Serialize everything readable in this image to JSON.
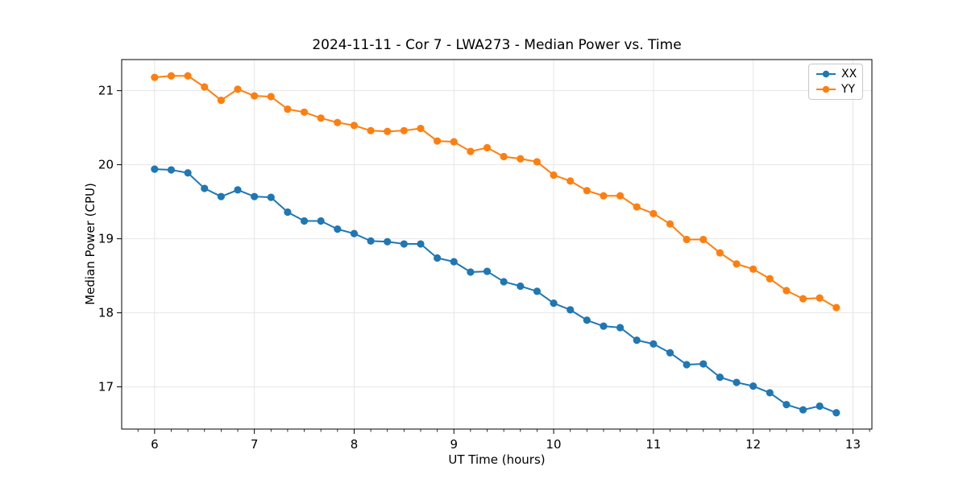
{
  "chart_data": {
    "type": "line",
    "title": "2024-11-11 - Cor 7 - LWA273 - Median Power vs. Time",
    "xlabel": "UT Time (hours)",
    "ylabel": "Median Power (CPU)",
    "x": [
      6.0,
      6.1667,
      6.3333,
      6.5,
      6.6667,
      6.8333,
      7.0,
      7.1667,
      7.3333,
      7.5,
      7.6667,
      7.8333,
      8.0,
      8.1667,
      8.3333,
      8.5,
      8.6667,
      8.8333,
      9.0,
      9.1667,
      9.3333,
      9.5,
      9.6667,
      9.8333,
      10.0,
      10.1667,
      10.3333,
      10.5,
      10.6667,
      10.8333,
      11.0,
      11.1667,
      11.3333,
      11.5,
      11.6667,
      11.8333,
      12.0,
      12.1667,
      12.3333,
      12.5,
      12.6667,
      12.8333
    ],
    "series": [
      {
        "name": "XX",
        "color": "#1f77b4",
        "values": [
          19.94,
          19.93,
          19.89,
          19.68,
          19.57,
          19.66,
          19.57,
          19.56,
          19.36,
          19.24,
          19.24,
          19.13,
          19.07,
          18.97,
          18.96,
          18.93,
          18.93,
          18.74,
          18.69,
          18.55,
          18.56,
          18.42,
          18.36,
          18.29,
          18.13,
          18.04,
          17.9,
          17.82,
          17.8,
          17.63,
          17.58,
          17.46,
          17.3,
          17.31,
          17.13,
          17.06,
          17.01,
          16.92,
          16.76,
          16.69,
          16.74,
          16.65
        ]
      },
      {
        "name": "YY",
        "color": "#ff7f0e",
        "values": [
          21.18,
          21.2,
          21.2,
          21.05,
          20.87,
          21.02,
          20.93,
          20.92,
          20.75,
          20.71,
          20.63,
          20.57,
          20.53,
          20.46,
          20.45,
          20.46,
          20.49,
          20.32,
          20.31,
          20.18,
          20.23,
          20.11,
          20.08,
          20.04,
          19.86,
          19.78,
          19.65,
          19.58,
          19.58,
          19.43,
          19.34,
          19.2,
          18.99,
          18.99,
          18.81,
          18.66,
          18.59,
          18.46,
          18.3,
          18.19,
          18.2,
          18.07
        ]
      }
    ],
    "xlim": [
      5.67,
      13.19
    ],
    "ylim": [
      16.43,
      21.42
    ],
    "x_ticks": [
      6,
      7,
      8,
      9,
      10,
      11,
      12,
      13
    ],
    "y_ticks": [
      17,
      18,
      19,
      20,
      21
    ],
    "x_minor_ticks_per_hour": 6,
    "grid": true,
    "legend_position": "upper right",
    "marker": "o",
    "colors": {
      "background": "#ffffff",
      "grid": "#e6e6e6",
      "axes": "#000000",
      "text": "#000000"
    }
  }
}
